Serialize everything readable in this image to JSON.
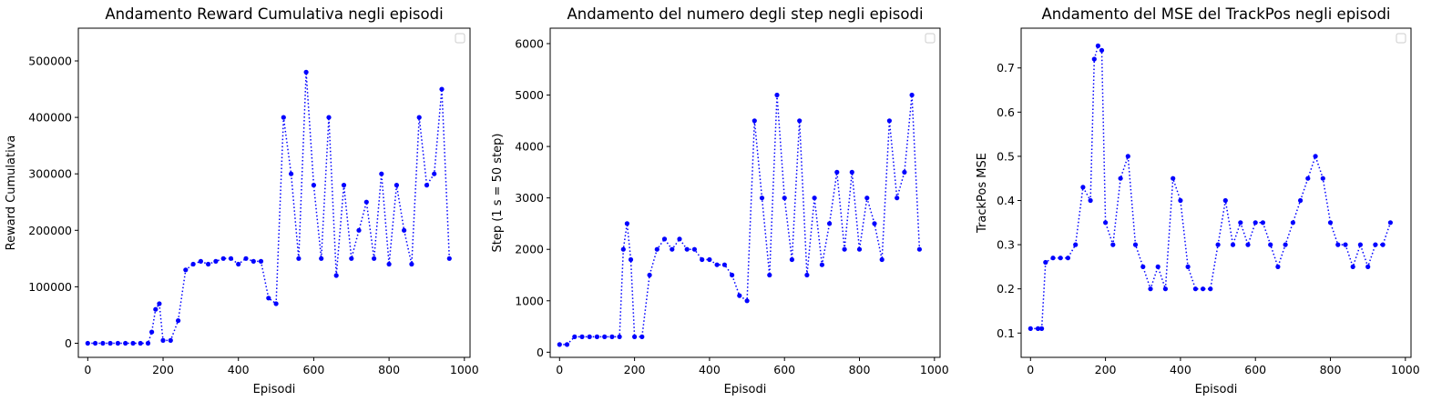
{
  "chart_data": [
    {
      "type": "line",
      "title": "Andamento Reward Cumulativa negli episodi",
      "xlabel": "Episodi",
      "ylabel": "Reward Cumulativa",
      "xlim": [
        -25,
        1015
      ],
      "ylim": [
        -25000,
        558000
      ],
      "xticks": [
        0,
        200,
        400,
        600,
        800,
        1000
      ],
      "xtick_labels": [
        "0",
        "200",
        "400",
        "600",
        "800",
        "1000"
      ],
      "yticks": [
        0,
        100000,
        200000,
        300000,
        400000,
        500000
      ],
      "ytick_labels": [
        "0",
        "100000",
        "200000",
        "300000",
        "400000",
        "500000"
      ],
      "legend": "top-right, empty",
      "grid": false,
      "line_style": "dotted",
      "marker": "circle",
      "color": "#0000ff",
      "series": [
        {
          "x": [
            0,
            20,
            40,
            60,
            80,
            100,
            120,
            140,
            160,
            170,
            180,
            190,
            200,
            220,
            240,
            260,
            280,
            300,
            320,
            340,
            360,
            380,
            400,
            420,
            440,
            460,
            480,
            500,
            520,
            540,
            560,
            580,
            600,
            620,
            640,
            660,
            680,
            700,
            720,
            740,
            760,
            780,
            800,
            820,
            840,
            860,
            880,
            900,
            920,
            940,
            960
          ],
          "y": [
            0,
            0,
            0,
            0,
            0,
            0,
            0,
            0,
            0,
            20000,
            60000,
            70000,
            5000,
            5000,
            40000,
            130000,
            140000,
            145000,
            140000,
            145000,
            150000,
            150000,
            140000,
            150000,
            145000,
            145000,
            80000,
            70000,
            400000,
            300000,
            150000,
            480000,
            280000,
            150000,
            400000,
            120000,
            280000,
            150000,
            200000,
            250000,
            150000,
            300000,
            140000,
            280000,
            200000,
            140000,
            400000,
            280000,
            300000,
            450000,
            150000
          ]
        }
      ]
    },
    {
      "type": "line",
      "title": "Andamento del numero degli step negli episodi",
      "xlabel": "Episodi",
      "ylabel": "Step (1 s = 50 step)",
      "xlim": [
        -25,
        1015
      ],
      "ylim": [
        -100,
        6300
      ],
      "xticks": [
        0,
        200,
        400,
        600,
        800,
        1000
      ],
      "xtick_labels": [
        "0",
        "200",
        "400",
        "600",
        "800",
        "1000"
      ],
      "yticks": [
        0,
        1000,
        2000,
        3000,
        4000,
        5000,
        6000
      ],
      "ytick_labels": [
        "0",
        "1000",
        "2000",
        "3000",
        "4000",
        "5000",
        "6000"
      ],
      "legend": "top-right, empty",
      "grid": false,
      "line_style": "dotted",
      "marker": "circle",
      "color": "#0000ff",
      "series": [
        {
          "x": [
            0,
            20,
            40,
            60,
            80,
            100,
            120,
            140,
            160,
            170,
            180,
            190,
            200,
            220,
            240,
            260,
            280,
            300,
            320,
            340,
            360,
            380,
            400,
            420,
            440,
            460,
            480,
            500,
            520,
            540,
            560,
            580,
            600,
            620,
            640,
            660,
            680,
            700,
            720,
            740,
            760,
            780,
            800,
            820,
            840,
            860,
            880,
            900,
            920,
            940,
            960
          ],
          "y": [
            150,
            150,
            300,
            300,
            300,
            300,
            300,
            300,
            300,
            2000,
            2500,
            1800,
            300,
            300,
            1500,
            2000,
            2200,
            2000,
            2200,
            2000,
            2000,
            1800,
            1800,
            1700,
            1700,
            1500,
            1100,
            1000,
            4500,
            3000,
            1500,
            5000,
            3000,
            1800,
            4500,
            1500,
            3000,
            1700,
            2500,
            3500,
            2000,
            3500,
            2000,
            3000,
            2500,
            1800,
            4500,
            3000,
            3500,
            5000,
            2000
          ]
        }
      ]
    },
    {
      "type": "line",
      "title": "Andamento del MSE del TrackPos negli episodi",
      "xlabel": "Episodi",
      "ylabel": "TrackPos MSE",
      "xlim": [
        -25,
        1015
      ],
      "ylim": [
        0.045,
        0.79
      ],
      "xticks": [
        0,
        200,
        400,
        600,
        800,
        1000
      ],
      "xtick_labels": [
        "0",
        "200",
        "400",
        "600",
        "800",
        "1000"
      ],
      "yticks": [
        0.1,
        0.2,
        0.3,
        0.4,
        0.5,
        0.6,
        0.7
      ],
      "ytick_labels": [
        "0.1",
        "0.2",
        "0.3",
        "0.4",
        "0.5",
        "0.6",
        "0.7"
      ],
      "legend": "top-right, empty",
      "grid": false,
      "line_style": "dotted",
      "marker": "circle",
      "color": "#0000ff",
      "series": [
        {
          "x": [
            0,
            20,
            30,
            40,
            60,
            80,
            100,
            120,
            140,
            160,
            170,
            180,
            190,
            200,
            220,
            240,
            260,
            280,
            300,
            320,
            340,
            360,
            380,
            400,
            420,
            440,
            460,
            480,
            500,
            520,
            540,
            560,
            580,
            600,
            620,
            640,
            660,
            680,
            700,
            720,
            740,
            760,
            780,
            800,
            820,
            840,
            860,
            880,
            900,
            920,
            940,
            960
          ],
          "y": [
            0.11,
            0.11,
            0.11,
            0.26,
            0.27,
            0.27,
            0.27,
            0.3,
            0.43,
            0.4,
            0.72,
            0.75,
            0.74,
            0.35,
            0.3,
            0.45,
            0.5,
            0.3,
            0.25,
            0.2,
            0.25,
            0.2,
            0.45,
            0.4,
            0.25,
            0.2,
            0.2,
            0.2,
            0.3,
            0.4,
            0.3,
            0.35,
            0.3,
            0.35,
            0.35,
            0.3,
            0.25,
            0.3,
            0.35,
            0.4,
            0.45,
            0.5,
            0.45,
            0.35,
            0.3,
            0.3,
            0.25,
            0.3,
            0.25,
            0.3,
            0.3,
            0.35
          ]
        }
      ]
    }
  ]
}
